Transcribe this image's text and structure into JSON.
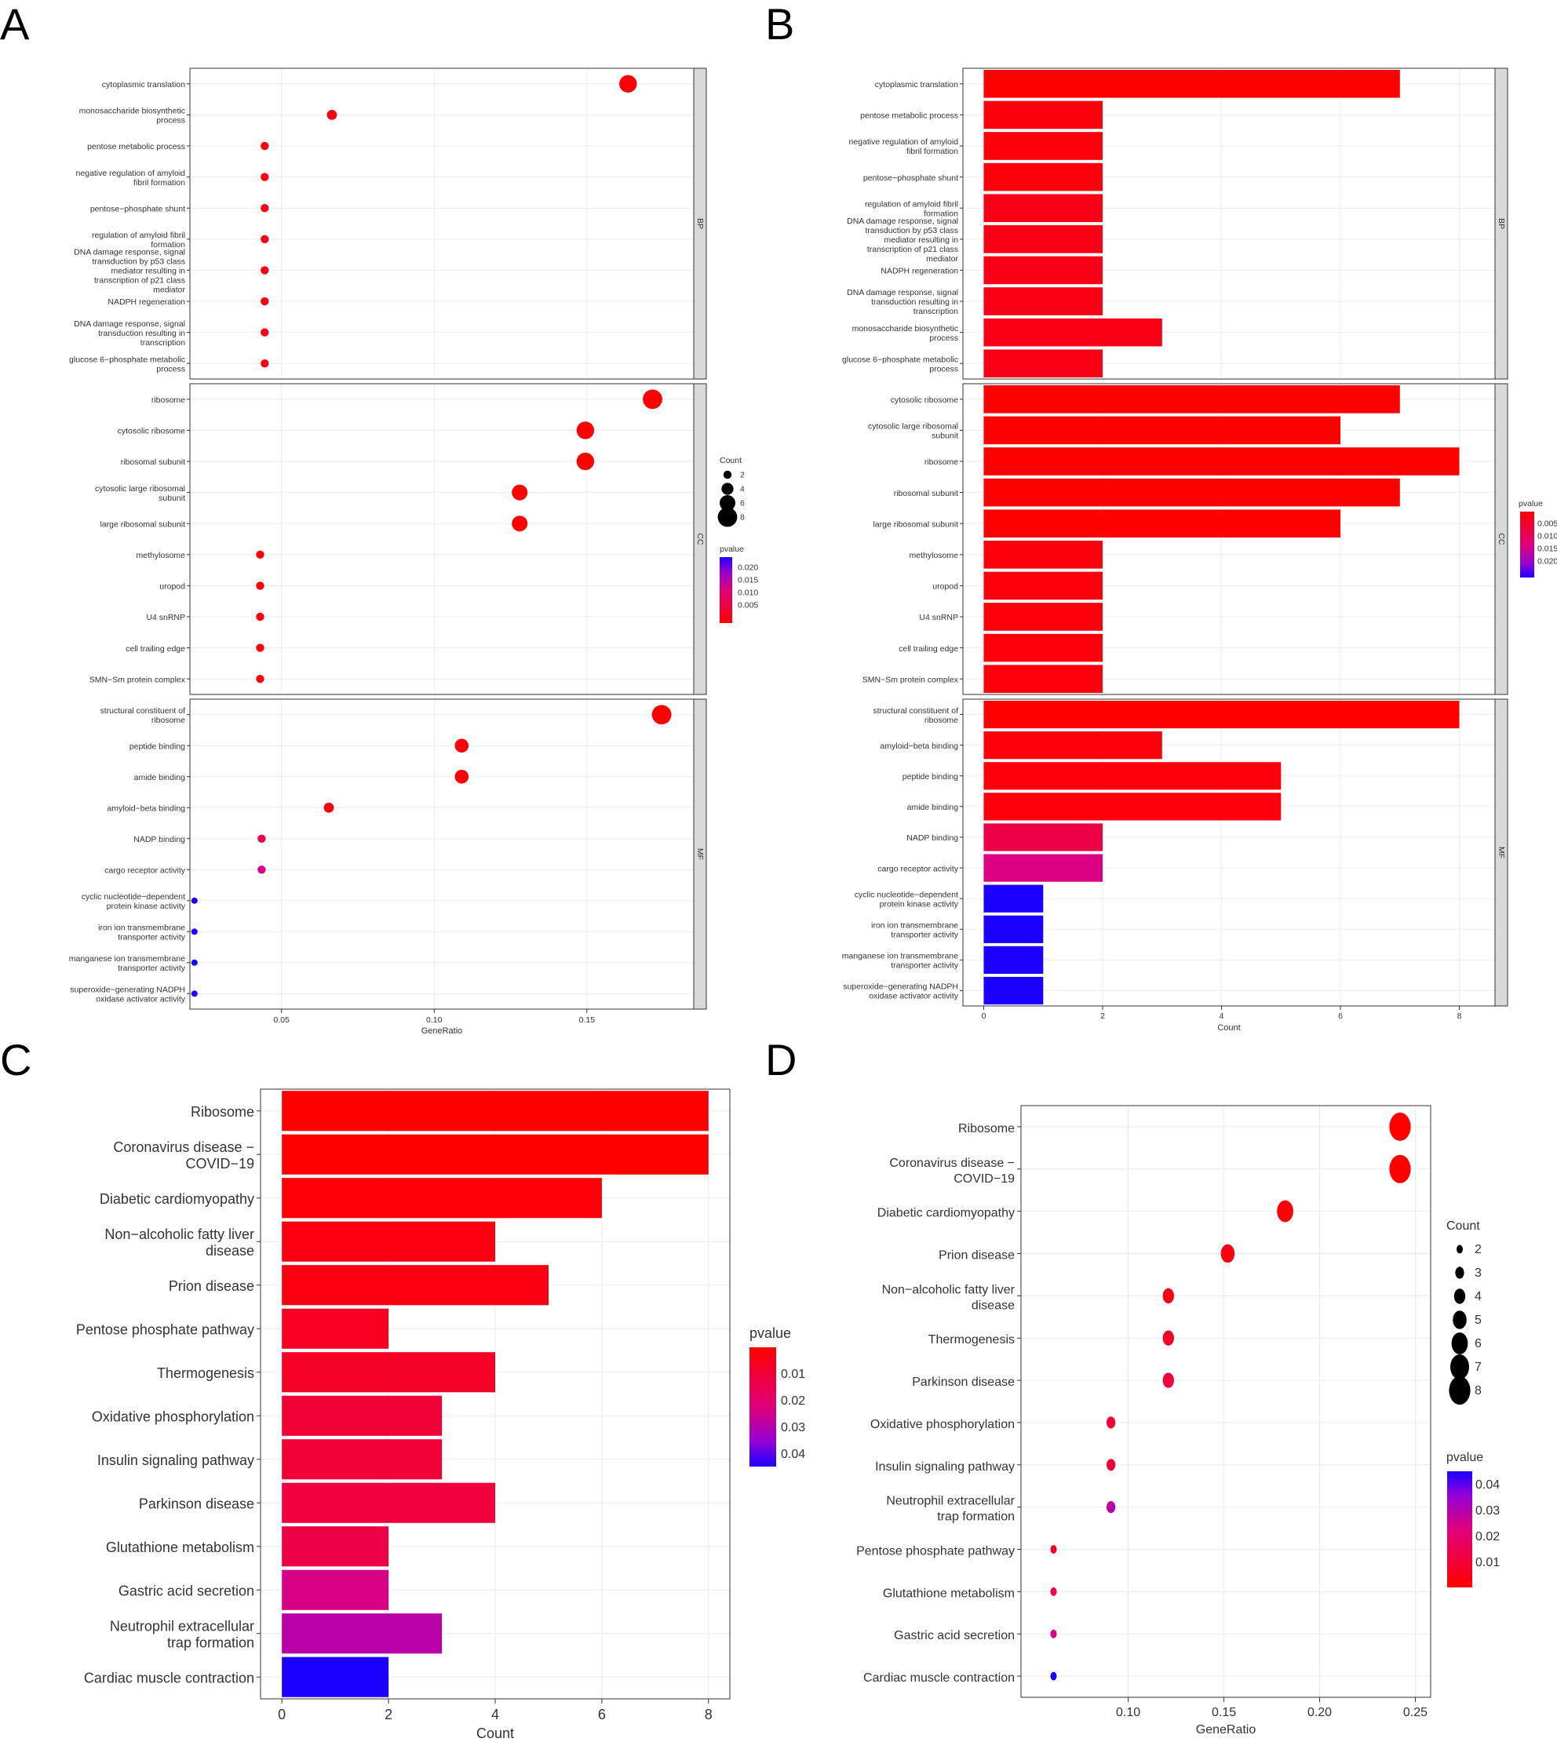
{
  "panel_letters": [
    "A",
    "B",
    "C",
    "D"
  ],
  "colors": {
    "low_p": "#ff0000",
    "mid_p": "#ff0a64",
    "mid2_p": "#c000c8",
    "high_p": "#1a00ff",
    "grid": "#ebebeb",
    "strip": "#d9d9d9"
  },
  "chart_data": [
    {
      "panel": "A",
      "type": "scatter",
      "xlabel": "GeneRatio",
      "xlim": [
        0.02,
        0.185
      ],
      "xticks": [
        0.05,
        0.1,
        0.15
      ],
      "xtick_labels": [
        "0.05",
        "0.10",
        "0.15"
      ],
      "legend": {
        "size_title": "Count",
        "size_values": [
          2,
          4,
          6,
          8
        ],
        "size_labels": [
          "2",
          "4",
          "6",
          "8"
        ],
        "color_title": "pvalue",
        "color_labels": [
          "0.020",
          "0.015",
          "0.010",
          "0.005"
        ]
      },
      "facets": [
        {
          "strip": "BP",
          "points": [
            {
              "term": "cytoplasmic translation",
              "x": 0.1635,
              "count": 7,
              "p": 0.001
            },
            {
              "term": "monosaccharide biosynthetic process",
              "x": 0.0665,
              "count": 3,
              "p": 0.003
            },
            {
              "term": "pentose metabolic process",
              "x": 0.0445,
              "count": 2,
              "p": 0.002
            },
            {
              "term": "negative regulation of amyloid fibril formation",
              "x": 0.0445,
              "count": 2,
              "p": 0.002
            },
            {
              "term": "pentose−phosphate shunt",
              "x": 0.0445,
              "count": 2,
              "p": 0.002
            },
            {
              "term": "regulation of amyloid fibril formation",
              "x": 0.0445,
              "count": 2,
              "p": 0.003
            },
            {
              "term": "DNA damage response, signal transduction by p53 class mediator resulting in transcription of p21 class mediator",
              "x": 0.0445,
              "count": 2,
              "p": 0.003
            },
            {
              "term": "NADPH regeneration",
              "x": 0.0445,
              "count": 2,
              "p": 0.003
            },
            {
              "term": "DNA damage response, signal transduction resulting in transcription",
              "x": 0.0445,
              "count": 2,
              "p": 0.003
            },
            {
              "term": "glucose 6−phosphate metabolic process",
              "x": 0.0445,
              "count": 2,
              "p": 0.003
            }
          ]
        },
        {
          "strip": "CC",
          "points": [
            {
              "term": "ribosome",
              "x": 0.1715,
              "count": 8,
              "p": 0.001
            },
            {
              "term": "cytosolic ribosome",
              "x": 0.1495,
              "count": 7,
              "p": 0.001
            },
            {
              "term": "ribosomal subunit",
              "x": 0.1495,
              "count": 7,
              "p": 0.001
            },
            {
              "term": "cytosolic large ribosomal subunit",
              "x": 0.128,
              "count": 6,
              "p": 0.001
            },
            {
              "term": "large ribosomal subunit",
              "x": 0.128,
              "count": 6,
              "p": 0.001
            },
            {
              "term": "methylosome",
              "x": 0.043,
              "count": 2,
              "p": 0.002
            },
            {
              "term": "uropod",
              "x": 0.043,
              "count": 2,
              "p": 0.002
            },
            {
              "term": "U4 snRNP",
              "x": 0.043,
              "count": 2,
              "p": 0.002
            },
            {
              "term": "cell trailing edge",
              "x": 0.043,
              "count": 2,
              "p": 0.002
            },
            {
              "term": "SMN−Sm protein complex",
              "x": 0.043,
              "count": 2,
              "p": 0.002
            }
          ]
        },
        {
          "strip": "MF",
          "points": [
            {
              "term": "structural constituent of ribosome",
              "x": 0.1745,
              "count": 8,
              "p": 0.001
            },
            {
              "term": "peptide binding",
              "x": 0.109,
              "count": 5,
              "p": 0.002
            },
            {
              "term": "amide binding",
              "x": 0.109,
              "count": 5,
              "p": 0.002
            },
            {
              "term": "amyloid−beta binding",
              "x": 0.0655,
              "count": 3,
              "p": 0.002
            },
            {
              "term": "NADP binding",
              "x": 0.0435,
              "count": 2,
              "p": 0.007
            },
            {
              "term": "cargo receptor activity",
              "x": 0.0435,
              "count": 2,
              "p": 0.012
            },
            {
              "term": "cyclic nucleotide−dependent protein kinase activity",
              "x": 0.0215,
              "count": 1,
              "p": 0.022
            },
            {
              "term": "iron ion transmembrane transporter activity",
              "x": 0.0215,
              "count": 1,
              "p": 0.022
            },
            {
              "term": "manganese ion transmembrane transporter activity",
              "x": 0.0215,
              "count": 1,
              "p": 0.022
            },
            {
              "term": "superoxide−generating NADPH oxidase activator activity",
              "x": 0.0215,
              "count": 1,
              "p": 0.022
            }
          ]
        }
      ]
    },
    {
      "panel": "B",
      "type": "bar",
      "xlabel": "Count",
      "xlim": [
        -0.35,
        8.6
      ],
      "xticks": [
        0,
        2,
        4,
        6,
        8
      ],
      "xtick_labels": [
        "0",
        "2",
        "4",
        "6",
        "8"
      ],
      "legend": {
        "color_title": "pvalue",
        "color_labels": [
          "0.005",
          "0.010",
          "0.015",
          "0.020"
        ]
      },
      "facets": [
        {
          "strip": "BP",
          "bars": [
            {
              "term": "cytoplasmic translation",
              "value": 7,
              "p": 0.001
            },
            {
              "term": "pentose metabolic process",
              "value": 2,
              "p": 0.002
            },
            {
              "term": "negative regulation of amyloid fibril formation",
              "value": 2,
              "p": 0.002
            },
            {
              "term": "pentose−phosphate shunt",
              "value": 2,
              "p": 0.002
            },
            {
              "term": "regulation of amyloid fibril formation",
              "value": 2,
              "p": 0.003
            },
            {
              "term": "DNA damage response, signal transduction by p53 class mediator resulting in transcription of p21 class mediator",
              "value": 2,
              "p": 0.003
            },
            {
              "term": "NADPH regeneration",
              "value": 2,
              "p": 0.003
            },
            {
              "term": "DNA damage response, signal transduction resulting in transcription",
              "value": 2,
              "p": 0.003
            },
            {
              "term": "monosaccharide biosynthetic process",
              "value": 3,
              "p": 0.003
            },
            {
              "term": "glucose 6−phosphate metabolic process",
              "value": 2,
              "p": 0.003
            }
          ]
        },
        {
          "strip": "CC",
          "bars": [
            {
              "term": "cytosolic ribosome",
              "value": 7,
              "p": 0.001
            },
            {
              "term": "cytosolic large ribosomal subunit",
              "value": 6,
              "p": 0.001
            },
            {
              "term": "ribosome",
              "value": 8,
              "p": 0.001
            },
            {
              "term": "ribosomal subunit",
              "value": 7,
              "p": 0.001
            },
            {
              "term": "large ribosomal subunit",
              "value": 6,
              "p": 0.001
            },
            {
              "term": "methylosome",
              "value": 2,
              "p": 0.002
            },
            {
              "term": "uropod",
              "value": 2,
              "p": 0.002
            },
            {
              "term": "U4 snRNP",
              "value": 2,
              "p": 0.002
            },
            {
              "term": "cell trailing edge",
              "value": 2,
              "p": 0.002
            },
            {
              "term": "SMN−Sm protein complex",
              "value": 2,
              "p": 0.002
            }
          ]
        },
        {
          "strip": "MF",
          "bars": [
            {
              "term": "structural constituent of ribosome",
              "value": 8,
              "p": 0.001
            },
            {
              "term": "amyloid−beta binding",
              "value": 3,
              "p": 0.002
            },
            {
              "term": "peptide binding",
              "value": 5,
              "p": 0.002
            },
            {
              "term": "amide binding",
              "value": 5,
              "p": 0.002
            },
            {
              "term": "NADP binding",
              "value": 2,
              "p": 0.007
            },
            {
              "term": "cargo receptor activity",
              "value": 2,
              "p": 0.012
            },
            {
              "term": "cyclic nucleotide−dependent protein kinase activity",
              "value": 1,
              "p": 0.022
            },
            {
              "term": "iron ion transmembrane transporter activity",
              "value": 1,
              "p": 0.022
            },
            {
              "term": "manganese ion transmembrane transporter activity",
              "value": 1,
              "p": 0.022
            },
            {
              "term": "superoxide−generating NADPH oxidase activator activity",
              "value": 1,
              "p": 0.022
            }
          ]
        }
      ]
    },
    {
      "panel": "C",
      "type": "bar",
      "xlabel": "Count",
      "xlim": [
        -0.4,
        8.4
      ],
      "xticks": [
        0,
        2,
        4,
        6,
        8
      ],
      "xtick_labels": [
        "0",
        "2",
        "4",
        "6",
        "8"
      ],
      "legend": {
        "color_title": "pvalue",
        "color_labels": [
          "0.01",
          "0.02",
          "0.03",
          "0.04"
        ]
      },
      "bars": [
        {
          "term": "Ribosome",
          "value": 8,
          "p": 0.001
        },
        {
          "term": "Coronavirus disease − COVID−19",
          "value": 8,
          "p": 0.001
        },
        {
          "term": "Diabetic cardiomyopathy",
          "value": 6,
          "p": 0.002
        },
        {
          "term": "Non−alcoholic fatty liver disease",
          "value": 4,
          "p": 0.004
        },
        {
          "term": "Prion disease",
          "value": 5,
          "p": 0.004
        },
        {
          "term": "Pentose phosphate pathway",
          "value": 2,
          "p": 0.007
        },
        {
          "term": "Thermogenesis",
          "value": 4,
          "p": 0.008
        },
        {
          "term": "Oxidative phosphorylation",
          "value": 3,
          "p": 0.011
        },
        {
          "term": "Insulin signaling pathway",
          "value": 3,
          "p": 0.011
        },
        {
          "term": "Parkinson disease",
          "value": 4,
          "p": 0.012
        },
        {
          "term": "Glutathione metabolism",
          "value": 2,
          "p": 0.014
        },
        {
          "term": "Gastric acid secretion",
          "value": 2,
          "p": 0.025
        },
        {
          "term": "Neutrophil extracellular trap formation",
          "value": 3,
          "p": 0.03
        },
        {
          "term": "Cardiac muscle contraction",
          "value": 2,
          "p": 0.046
        }
      ]
    },
    {
      "panel": "D",
      "type": "scatter",
      "xlabel": "GeneRatio",
      "xlim": [
        0.044,
        0.258
      ],
      "xticks": [
        0.1,
        0.15,
        0.2,
        0.25
      ],
      "xtick_labels": [
        "0.10",
        "0.15",
        "0.20",
        "0.25"
      ],
      "legend": {
        "size_title": "Count",
        "size_values": [
          2,
          3,
          4,
          5,
          6,
          7,
          8
        ],
        "size_labels": [
          "2",
          "3",
          "4",
          "5",
          "6",
          "7",
          "8"
        ],
        "color_title": "pvalue",
        "color_labels": [
          "0.04",
          "0.03",
          "0.02",
          "0.01"
        ]
      },
      "points": [
        {
          "term": "Ribosome",
          "x": 0.242,
          "count": 8,
          "p": 0.001
        },
        {
          "term": "Coronavirus disease − COVID−19",
          "x": 0.242,
          "count": 8,
          "p": 0.001
        },
        {
          "term": "Diabetic cardiomyopathy",
          "x": 0.182,
          "count": 6,
          "p": 0.002
        },
        {
          "term": "Prion disease",
          "x": 0.152,
          "count": 5,
          "p": 0.004
        },
        {
          "term": "Non−alcoholic fatty liver disease",
          "x": 0.121,
          "count": 4,
          "p": 0.004
        },
        {
          "term": "Thermogenesis",
          "x": 0.121,
          "count": 4,
          "p": 0.008
        },
        {
          "term": "Parkinson disease",
          "x": 0.121,
          "count": 4,
          "p": 0.012
        },
        {
          "term": "Oxidative phosphorylation",
          "x": 0.091,
          "count": 3,
          "p": 0.011
        },
        {
          "term": "Insulin signaling pathway",
          "x": 0.091,
          "count": 3,
          "p": 0.011
        },
        {
          "term": "Neutrophil extracellular trap formation",
          "x": 0.091,
          "count": 3,
          "p": 0.03
        },
        {
          "term": "Pentose phosphate pathway",
          "x": 0.061,
          "count": 2,
          "p": 0.007
        },
        {
          "term": "Glutathione metabolism",
          "x": 0.061,
          "count": 2,
          "p": 0.014
        },
        {
          "term": "Gastric acid secretion",
          "x": 0.061,
          "count": 2,
          "p": 0.025
        },
        {
          "term": "Cardiac muscle contraction",
          "x": 0.061,
          "count": 2,
          "p": 0.046
        }
      ]
    }
  ]
}
